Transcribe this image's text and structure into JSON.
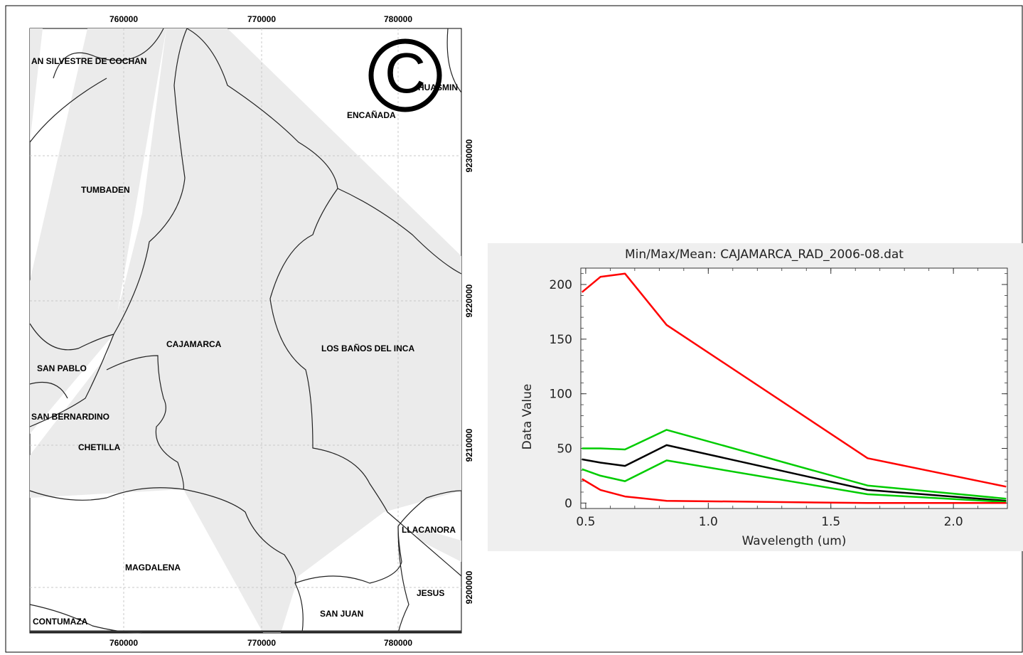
{
  "map": {
    "x_ticks": [
      "760000",
      "770000",
      "780000"
    ],
    "y_ticks": [
      "9230000",
      "9220000",
      "9210000",
      "9200000"
    ],
    "districts": [
      {
        "id": "san-silvestre",
        "label": "AN SILVESTRE DE COCHAN"
      },
      {
        "id": "huasmin",
        "label": "HUASMIN"
      },
      {
        "id": "encanada",
        "label": "ENCAÑADA"
      },
      {
        "id": "tumbaden",
        "label": "TUMBADEN"
      },
      {
        "id": "cajamarca",
        "label": "CAJAMARCA"
      },
      {
        "id": "los-banos",
        "label": "LOS BAÑOS DEL INCA"
      },
      {
        "id": "san-pablo",
        "label": "SAN PABLO"
      },
      {
        "id": "san-bernardino",
        "label": "SAN BERNARDINO"
      },
      {
        "id": "chetilla",
        "label": "CHETILLA"
      },
      {
        "id": "llacanora",
        "label": "LLACANORA"
      },
      {
        "id": "magdalena",
        "label": "MAGDALENA"
      },
      {
        "id": "jesus",
        "label": "JESUS"
      },
      {
        "id": "san-juan",
        "label": "SAN JUAN"
      },
      {
        "id": "contumaza",
        "label": "CONTUMAZA"
      }
    ],
    "copyright_symbol": "©"
  },
  "chart_data": {
    "type": "line",
    "title": "Min/Max/Mean: CAJAMARCA_RAD_2006-08.dat",
    "xlabel": "Wavelength (um)",
    "ylabel": "Data Value",
    "xlim": [
      0.48,
      2.22
    ],
    "ylim": [
      -5,
      215
    ],
    "x_ticks": [
      0.5,
      1.0,
      1.5,
      2.0
    ],
    "x_tick_labels": [
      "0.5",
      "1.0",
      "1.5",
      "2.0"
    ],
    "y_ticks": [
      0,
      50,
      100,
      150,
      200
    ],
    "y_tick_labels": [
      "0",
      "50",
      "100",
      "150",
      "200"
    ],
    "x": [
      0.485,
      0.56,
      0.66,
      0.83,
      1.65,
      2.215
    ],
    "series": [
      {
        "role": "max",
        "color": "#ff0000",
        "values": [
          193,
          207,
          210,
          163,
          41,
          15
        ]
      },
      {
        "role": "mean_plus_std",
        "color": "#00cc00",
        "values": [
          50,
          50,
          49,
          67,
          16,
          4
        ]
      },
      {
        "role": "mean",
        "color": "#000000",
        "values": [
          40,
          37,
          34,
          53,
          12,
          2
        ]
      },
      {
        "role": "mean_minus_std",
        "color": "#00cc00",
        "values": [
          31,
          25,
          20,
          39,
          8,
          1
        ]
      },
      {
        "role": "min",
        "color": "#ff0000",
        "values": [
          22,
          12,
          6,
          2,
          0,
          0
        ]
      }
    ]
  }
}
